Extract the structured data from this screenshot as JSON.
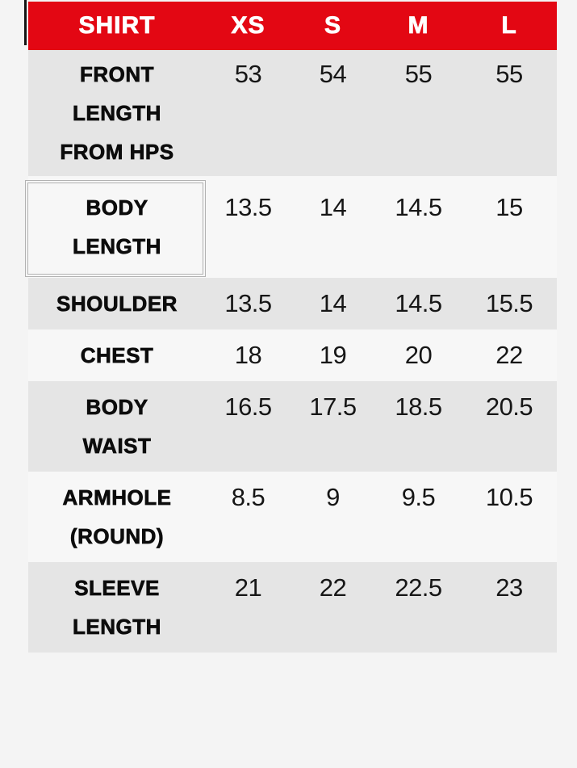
{
  "colors": {
    "page_bg": "#f4f4f4",
    "header_bg": "#e30713",
    "header_text": "#ffffff",
    "row_gray": "#e5e5e5",
    "row_light": "#f7f7f7",
    "label_text": "#0c0c0c",
    "value_text": "#161616",
    "selection_border": "#b2b2b2",
    "mark_color": "#141414"
  },
  "table": {
    "header": {
      "label": "SHIRT",
      "sizes": [
        "XS",
        "S",
        "M",
        "L"
      ]
    },
    "rows": [
      {
        "label": "FRONT LENGTH FROM HPS",
        "label_lines": [
          "FRONT",
          "LENGTH",
          "FROM HPS"
        ],
        "values": [
          "53",
          "54",
          "55",
          "55"
        ]
      },
      {
        "label": "BODY LENGTH",
        "label_lines": [
          "BODY",
          "LENGTH"
        ],
        "values": [
          "13.5",
          "14",
          "14.5",
          "15"
        ],
        "selected": true
      },
      {
        "label": "SHOULDER",
        "label_lines": [
          "SHOULDER"
        ],
        "values": [
          "13.5",
          "14",
          "14.5",
          "15.5"
        ]
      },
      {
        "label": "CHEST",
        "label_lines": [
          "CHEST"
        ],
        "values": [
          "18",
          "19",
          "20",
          "22"
        ]
      },
      {
        "label": "BODY WAIST",
        "label_lines": [
          "BODY",
          "WAIST"
        ],
        "values": [
          "16.5",
          "17.5",
          "18.5",
          "20.5"
        ]
      },
      {
        "label": "ARMHOLE (ROUND)",
        "label_lines": [
          "ARMHOLE",
          "(ROUND)"
        ],
        "values": [
          "8.5",
          "9",
          "9.5",
          "10.5"
        ]
      },
      {
        "label": "SLEEVE LENGTH",
        "label_lines": [
          "SLEEVE",
          "LENGTH"
        ],
        "values": [
          "21",
          "22",
          "22.5",
          "23"
        ]
      }
    ]
  }
}
